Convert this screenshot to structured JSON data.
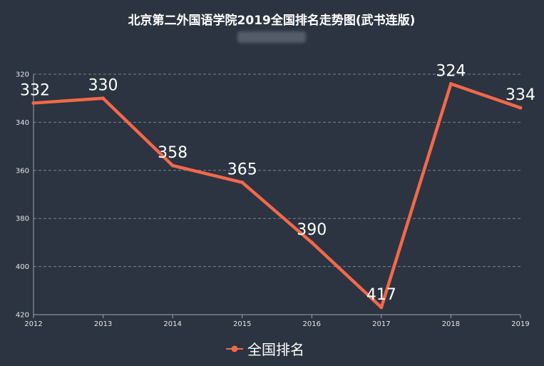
{
  "chart_data": {
    "type": "line",
    "title": "北京第二外国语学院2019全国排名走势图(武书连版)",
    "categories": [
      "2012",
      "2013",
      "2014",
      "2015",
      "2016",
      "2017",
      "2018",
      "2019"
    ],
    "series": [
      {
        "name": "全国排名",
        "values": [
          332,
          330,
          358,
          365,
          390,
          417,
          324,
          334
        ],
        "color": "#f3684a"
      }
    ],
    "y_ticks": [
      "320",
      "340",
      "360",
      "380",
      "400",
      "420"
    ],
    "ylim": [
      320,
      420
    ],
    "y_inverted": true,
    "grid": true,
    "grid_style": "dashed-horizontal",
    "legend_position": "bottom-center",
    "background": "#2b3440",
    "axis_color": "#9aa3ad"
  }
}
